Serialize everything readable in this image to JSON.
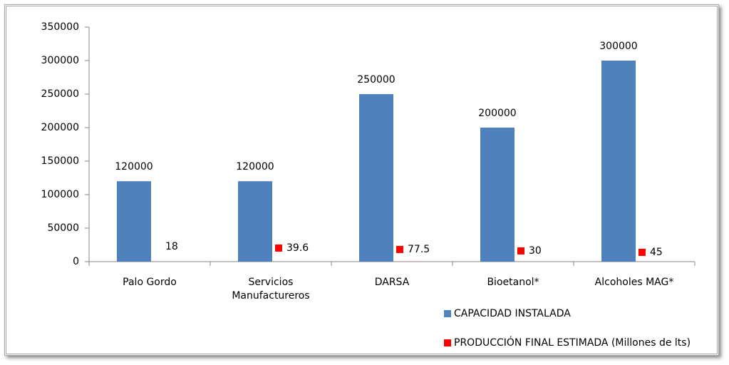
{
  "chart_data": {
    "type": "bar",
    "categories": [
      "Palo Gordo",
      "Servicios Manufactureros",
      "DARSA",
      "Bioetanol*",
      "Alcoholes MAG*"
    ],
    "series": [
      {
        "name": "CAPACIDAD INSTALADA",
        "color": "#4f81bd",
        "values": [
          120000,
          120000,
          250000,
          200000,
          300000
        ]
      },
      {
        "name": "PRODUCCIÓN FINAL ESTIMADA (Millones de lts)",
        "color": "#ff0000",
        "values": [
          18,
          39.6,
          77.5,
          30,
          45
        ]
      }
    ],
    "ylim": [
      0,
      350000
    ],
    "yticks": [
      0,
      50000,
      100000,
      150000,
      200000,
      250000,
      300000,
      350000
    ],
    "legend": "bottom-right"
  }
}
